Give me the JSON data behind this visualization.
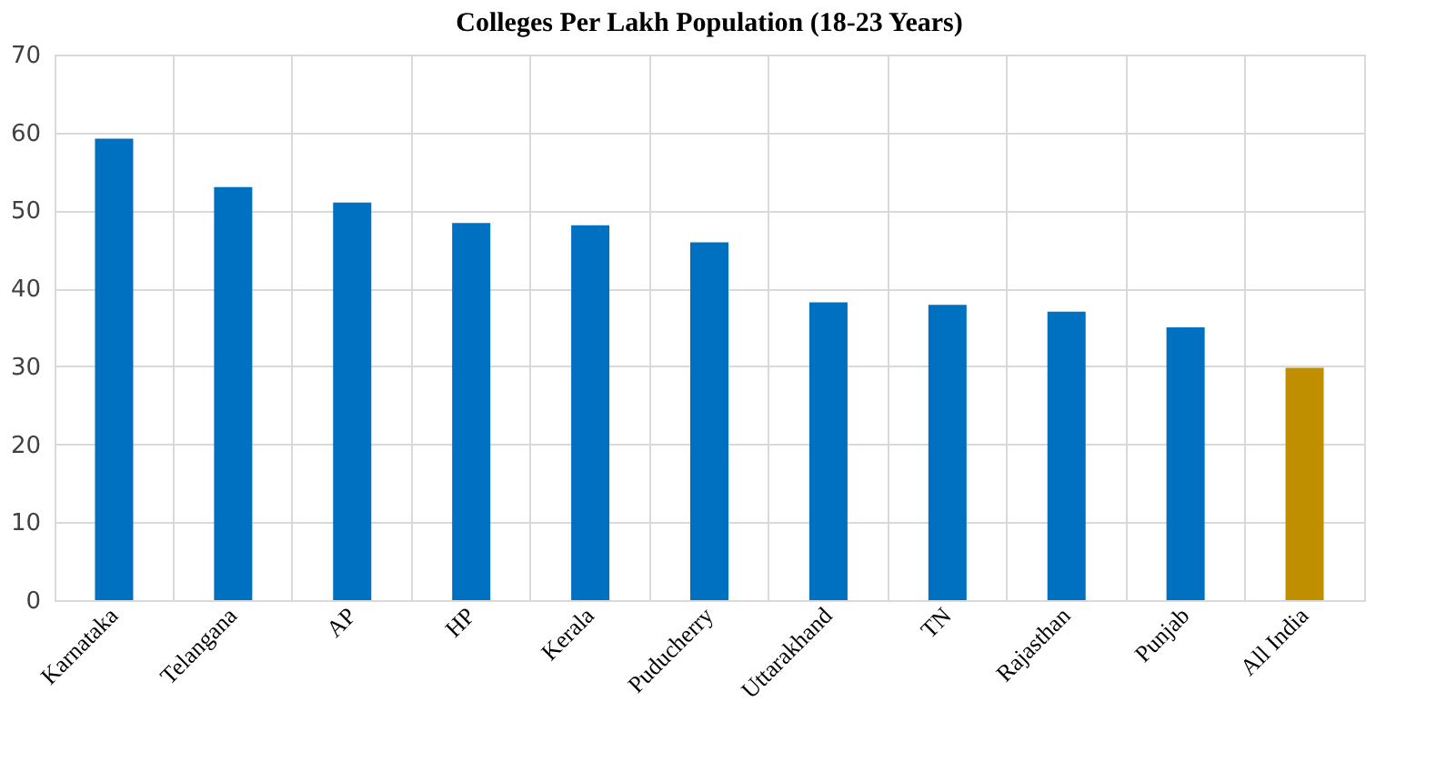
{
  "chart_data": {
    "type": "bar",
    "title": "Colleges Per Lakh Population (18-23 Years)",
    "categories": [
      "Karnataka",
      "Telangana",
      "AP",
      "HP",
      "Kerala",
      "Puducherry",
      "Uttarakhand",
      "TN",
      "Rajasthan",
      "Punjab",
      "All India"
    ],
    "values": [
      59.2,
      53.0,
      51.0,
      48.4,
      48.1,
      45.9,
      38.2,
      37.9,
      37.0,
      35.0,
      29.8
    ],
    "colors": [
      "#0070c0",
      "#0070c0",
      "#0070c0",
      "#0070c0",
      "#0070c0",
      "#0070c0",
      "#0070c0",
      "#0070c0",
      "#0070c0",
      "#0070c0",
      "#bf8f00"
    ],
    "ylim": [
      0,
      70
    ],
    "yticks": [
      0,
      10,
      20,
      30,
      40,
      50,
      60,
      70
    ],
    "grid": true
  }
}
